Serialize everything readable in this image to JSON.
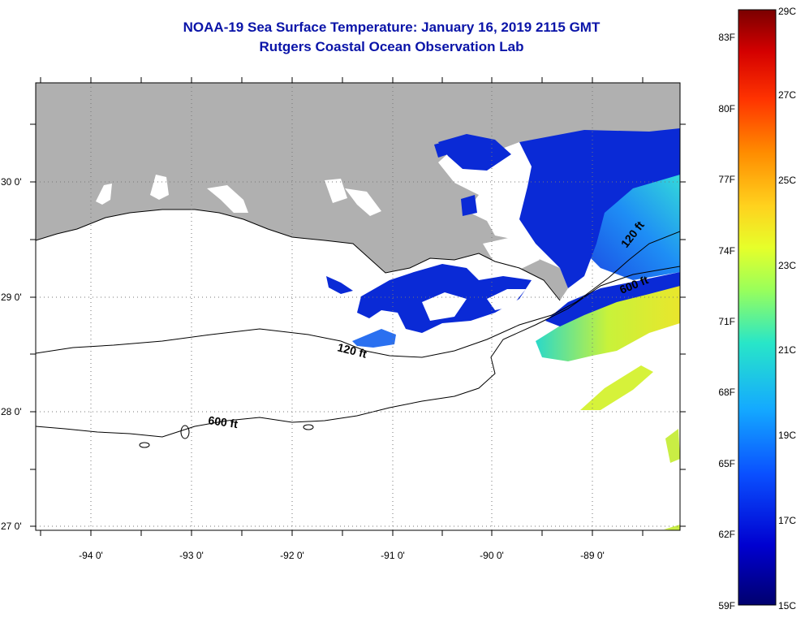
{
  "title": {
    "line1": "NOAA-19 Sea Surface Temperature:  January 16, 2019 2115 GMT",
    "line2": "Rutgers Coastal Ocean Observation Lab"
  },
  "map": {
    "lat_labels": [
      "30 0'",
      "29 0'",
      "28 0'",
      "27 0'"
    ],
    "lon_labels": [
      "-94 0'",
      "-93 0'",
      "-92 0'",
      "-91 0'",
      "-90 0'",
      "-89 0'"
    ],
    "contour_labels": [
      "120 ft",
      "600 ft",
      "120 ft",
      "600 ft"
    ],
    "land_color": "#b0b0b0",
    "no_data_color": "#ffffff"
  },
  "colorbar": {
    "fahrenheit_labels": [
      "83F",
      "80F",
      "77F",
      "74F",
      "71F",
      "68F",
      "65F",
      "62F",
      "59F"
    ],
    "celsius_labels": [
      "29C",
      "27C",
      "25C",
      "23C",
      "21C",
      "19C",
      "17C",
      "15C"
    ],
    "colors": [
      "#7a0000",
      "#d40000",
      "#ff3300",
      "#ff8c00",
      "#ffd21e",
      "#e6ff2a",
      "#9aff5a",
      "#28e6c8",
      "#14aaff",
      "#0a50ff",
      "#0000d0",
      "#00006e"
    ]
  }
}
